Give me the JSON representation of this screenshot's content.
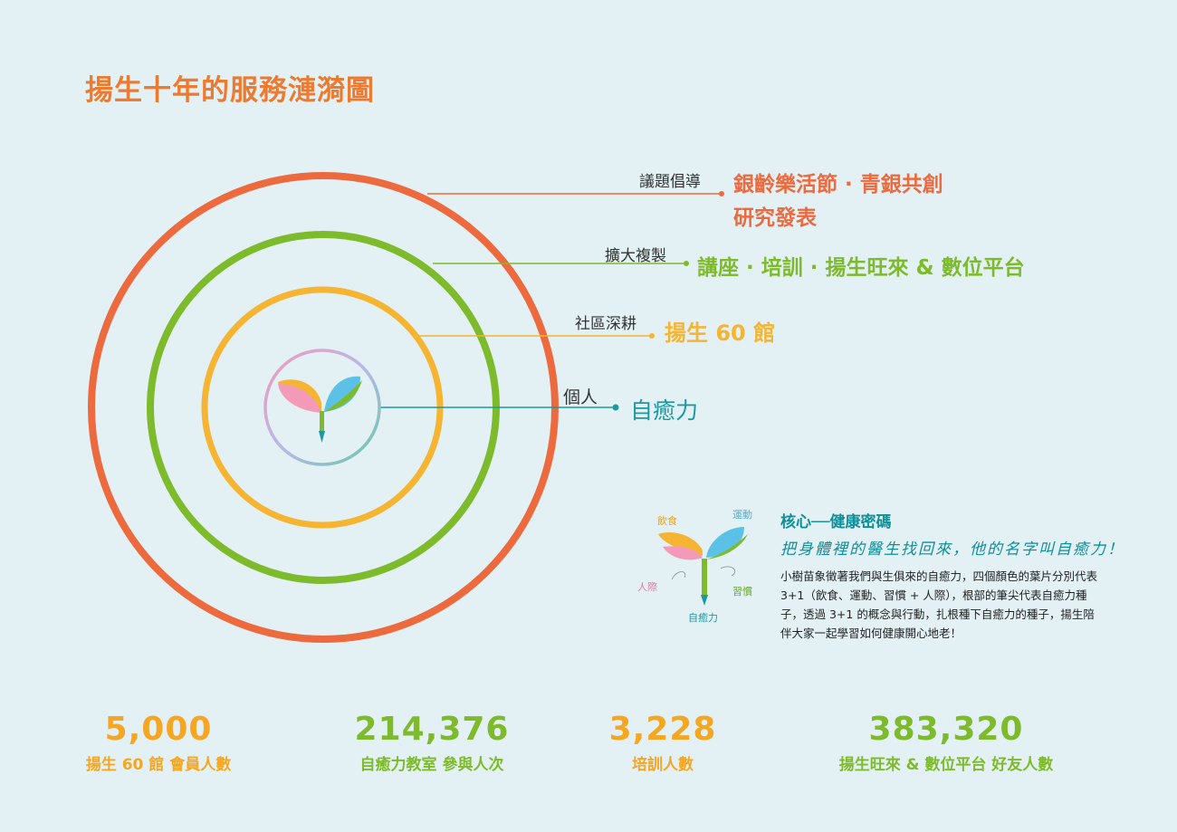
{
  "title": "揚生十年的服務漣漪圖",
  "colors": {
    "orange": "#ec6a3e",
    "green": "#7dbb2c",
    "yellow": "#f5b431",
    "teal": "#1a9aa0",
    "pink": "#f29ab8",
    "blue": "#5cc1e6",
    "title": "#ee7a2f"
  },
  "levels": [
    {
      "label": "議題倡導",
      "text": "銀齡樂活節 · 青銀共創",
      "text2": "研究發表",
      "color": "#ec6a3e"
    },
    {
      "label": "擴大複製",
      "text": "講座 · 培訓 · 揚生旺來 & 數位平台",
      "color": "#7dbb2c"
    },
    {
      "label": "社區深耕",
      "text": "揚生 60 館",
      "color": "#f5b431"
    },
    {
      "label": "個人",
      "text": "自癒力",
      "color": "#1a9aa0"
    }
  ],
  "core": {
    "title": "核心──健康密碼",
    "subtitle": "把身體裡的醫生找回來，他的名字叫自癒力！",
    "body": "小樹苗象徵著我們與生俱來的自癒力，四個顏色的葉片分別代表 3+1（飲食、運動、習慣 + 人際），根部的筆尖代表自癒力種子，透過 3+1 的概念與行動，扎根種下自癒力的種子，揚生陪伴大家一起學習如何健康開心地老！",
    "leaf_labels": {
      "diet": "飲食",
      "exercise": "運動",
      "social": "人際",
      "habit": "習慣",
      "self_healing": "自癒力"
    }
  },
  "stats": [
    {
      "value": "5,000",
      "label": "揚生 60 館 會員人數",
      "color": "#f5a623"
    },
    {
      "value": "214,376",
      "label": "自癒力教室 參與人次",
      "color": "#7dbb2c"
    },
    {
      "value": "3,228",
      "label": "培訓人數",
      "color": "#f5a623"
    },
    {
      "value": "383,320",
      "label": "揚生旺來 & 數位平台 好友人數",
      "color": "#7dbb2c"
    }
  ]
}
